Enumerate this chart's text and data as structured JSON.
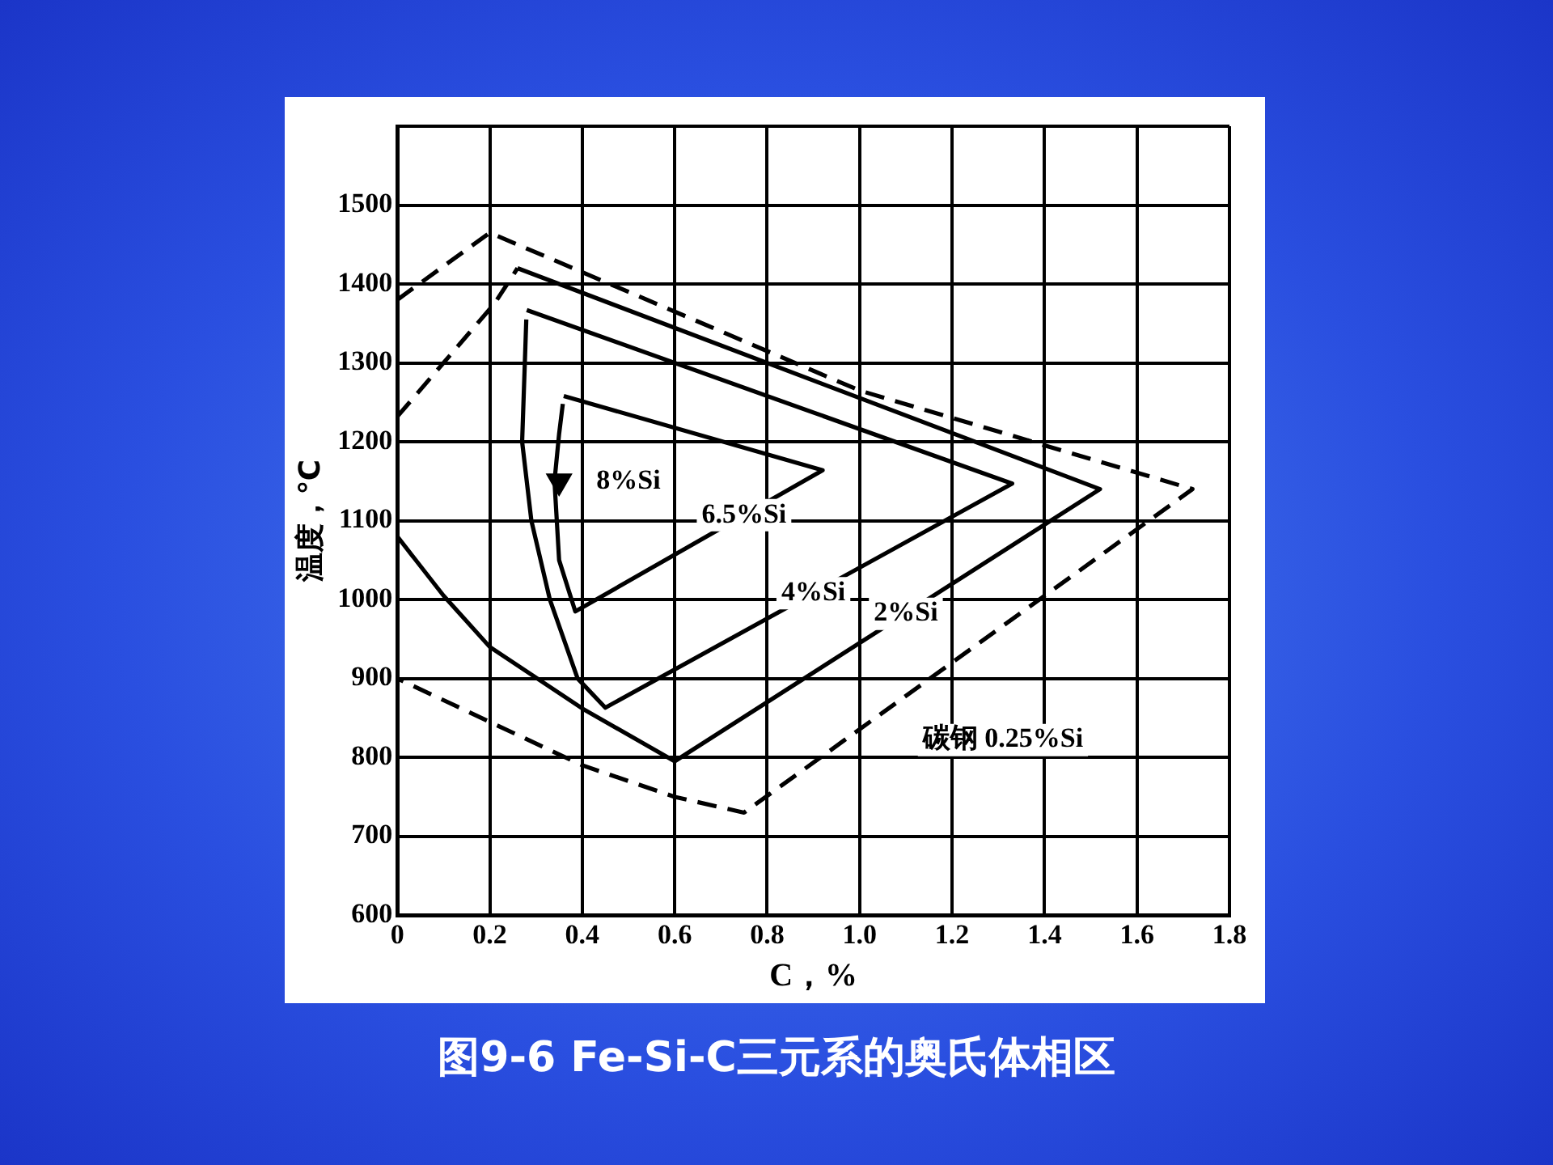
{
  "chart_data": {
    "type": "line",
    "title": "图9-6  Fe-Si-C三元系的奥氏体相区",
    "xlabel": "C，%",
    "ylabel": "温度，℃",
    "xlim": [
      0,
      1.8
    ],
    "xticks": [
      0,
      0.2,
      0.4,
      0.6,
      0.8,
      {
        "value": 1,
        "label": "1.0"
      },
      1.2,
      1.4,
      1.6,
      1.8
    ],
    "ylim": [
      600,
      1600
    ],
    "yticks": [
      600,
      700,
      800,
      900,
      1000,
      1100,
      1200,
      1300,
      1400,
      1500,
      {
        "value": 1600,
        "label": null
      }
    ],
    "grid": true,
    "legend": false,
    "marker": "none",
    "series": [
      {
        "name": "碳钢 0.25%Si",
        "color": "#000000",
        "line_style": "dashed",
        "x": [
          0,
          0.2,
          1.0,
          1.72,
          0.75,
          0.6,
          0.4,
          0
        ],
        "values": [
          1380,
          1465,
          1265,
          1140,
          730,
          750,
          790,
          900
        ]
      },
      {
        "name": "2%Si",
        "color": "#000000",
        "line_style": "solid",
        "x": [
          0.26,
          1.52,
          0.6,
          0.4,
          0.2,
          0.1,
          0
        ],
        "values": [
          1420,
          1140,
          795,
          862,
          940,
          1005,
          1080
        ]
      },
      {
        "color": "#000000",
        "line_style": "dashed",
        "x": [
          0,
          0.21,
          0.26
        ],
        "values": [
          1232,
          1375,
          1420
        ]
      },
      {
        "name": "4%Si",
        "color": "#000000",
        "line_style": "solid",
        "x": [
          0.28,
          1.33,
          0.45,
          0.39,
          0.33,
          0.29,
          0.27,
          0.277,
          0.279
        ],
        "values": [
          1367,
          1147,
          863,
          900,
          1000,
          1100,
          1200,
          1320,
          1355
        ]
      },
      {
        "name": "6.5%Si",
        "color": "#000000",
        "line_style": "solid",
        "x": [
          0.36,
          0.92,
          0.385,
          0.35,
          0.34,
          0.35,
          0.358
        ],
        "values": [
          1258,
          1164,
          985,
          1050,
          1150,
          1210,
          1248
        ]
      },
      {
        "name": "8%Si",
        "type": "scatter",
        "marker": "triangle",
        "color": "#000000",
        "x": [
          0.35
        ],
        "values": [
          1150
        ]
      }
    ]
  }
}
